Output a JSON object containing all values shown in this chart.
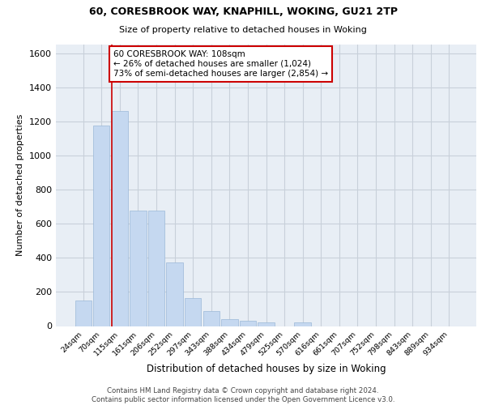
{
  "title1": "60, CORESBROOK WAY, KNAPHILL, WOKING, GU21 2TP",
  "title2": "Size of property relative to detached houses in Woking",
  "xlabel": "Distribution of detached houses by size in Woking",
  "ylabel": "Number of detached properties",
  "categories": [
    "24sqm",
    "70sqm",
    "115sqm",
    "161sqm",
    "206sqm",
    "252sqm",
    "297sqm",
    "343sqm",
    "388sqm",
    "434sqm",
    "479sqm",
    "525sqm",
    "570sqm",
    "616sqm",
    "661sqm",
    "707sqm",
    "752sqm",
    "798sqm",
    "843sqm",
    "889sqm",
    "934sqm"
  ],
  "values": [
    150,
    1175,
    1260,
    675,
    675,
    375,
    165,
    88,
    38,
    32,
    22,
    0,
    22,
    0,
    0,
    0,
    0,
    0,
    0,
    0,
    0
  ],
  "bar_color": "#c5d8f0",
  "bar_edge_color": "#9ab8d8",
  "property_line_color": "#cc0000",
  "annotation_text": "60 CORESBROOK WAY: 108sqm\n← 26% of detached houses are smaller (1,024)\n73% of semi-detached houses are larger (2,854) →",
  "annotation_box_color": "#ffffff",
  "annotation_box_edge_color": "#cc0000",
  "ylim": [
    0,
    1650
  ],
  "yticks": [
    0,
    200,
    400,
    600,
    800,
    1000,
    1200,
    1400,
    1600
  ],
  "grid_color": "#c8d0da",
  "bg_color": "#e8eef5",
  "footer": "Contains HM Land Registry data © Crown copyright and database right 2024.\nContains public sector information licensed under the Open Government Licence v3.0."
}
